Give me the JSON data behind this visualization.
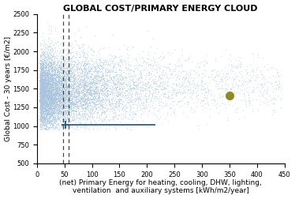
{
  "title": "GLOBAL COST/PRIMARY ENERGY CLOUD",
  "xlabel_line1": "(net) Primary Energy for heating, cooling, DHW, lighting,",
  "xlabel_line2": "ventilation  and auxiliary systems [kWh/m2/year]",
  "ylabel": "Global Cost - 30 years [€/m2]",
  "xlim": [
    0,
    450
  ],
  "ylim": [
    500,
    2500
  ],
  "xticks": [
    0,
    50,
    100,
    150,
    200,
    250,
    300,
    350,
    400,
    450
  ],
  "yticks": [
    500,
    750,
    1000,
    1250,
    1500,
    1750,
    2000,
    2250,
    2500
  ],
  "cloud_color": "#a8c4e0",
  "cloud_alpha": 0.6,
  "dashed_line1_x": 47,
  "dashed_line2_x": 57,
  "dashed_color": "#444444",
  "hline_y": 1020,
  "hline_xstart": 47,
  "hline_xend": 215,
  "hline_color": "#2e5f8a",
  "marker_x": 52,
  "marker_y": 1020,
  "marker_color": "#2e5f8a",
  "special_dot_x": 350,
  "special_dot_y": 1410,
  "special_dot_color": "#8b8b2a",
  "seed": 42,
  "n_cloud_points": 12000,
  "background_color": "#ffffff",
  "title_fontsize": 8,
  "axis_fontsize": 6.5,
  "tick_fontsize": 6
}
